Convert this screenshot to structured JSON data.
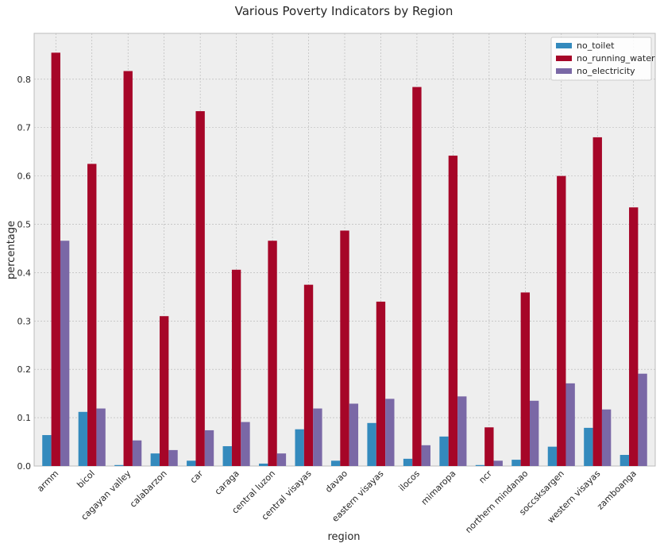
{
  "chart_data": {
    "type": "bar",
    "title": "Various Poverty Indicators by Region",
    "xlabel": "region",
    "ylabel": "percentage",
    "ylim": [
      0,
      0.895
    ],
    "yticks": [
      "0.0",
      "0.1",
      "0.2",
      "0.3",
      "0.4",
      "0.5",
      "0.6",
      "0.7",
      "0.8"
    ],
    "grid": true,
    "legend_position": "top-right",
    "categories": [
      "armm",
      "bicol",
      "cagayan valley",
      "calabarzon",
      "car",
      "caraga",
      "central luzon",
      "central visayas",
      "davao",
      "eastern visayas",
      "ilocos",
      "mimaropa",
      "ncr",
      "northern mindanao",
      "soccsksargen",
      "western visayas",
      "zamboanga"
    ],
    "series": [
      {
        "name": "no_toilet",
        "color": "#348abd",
        "values": [
          0.064,
          0.112,
          0.002,
          0.026,
          0.011,
          0.041,
          0.005,
          0.076,
          0.011,
          0.089,
          0.015,
          0.061,
          0.002,
          0.013,
          0.04,
          0.079,
          0.023
        ]
      },
      {
        "name": "no_running_water",
        "color": "#a60628",
        "values": [
          0.855,
          0.625,
          0.817,
          0.31,
          0.734,
          0.406,
          0.466,
          0.375,
          0.487,
          0.34,
          0.784,
          0.642,
          0.08,
          0.359,
          0.6,
          0.68,
          0.535
        ]
      },
      {
        "name": "no_electricity",
        "color": "#7a68a6",
        "values": [
          0.466,
          0.119,
          0.053,
          0.033,
          0.074,
          0.091,
          0.026,
          0.119,
          0.129,
          0.139,
          0.043,
          0.144,
          0.011,
          0.135,
          0.171,
          0.117,
          0.191
        ]
      }
    ]
  }
}
